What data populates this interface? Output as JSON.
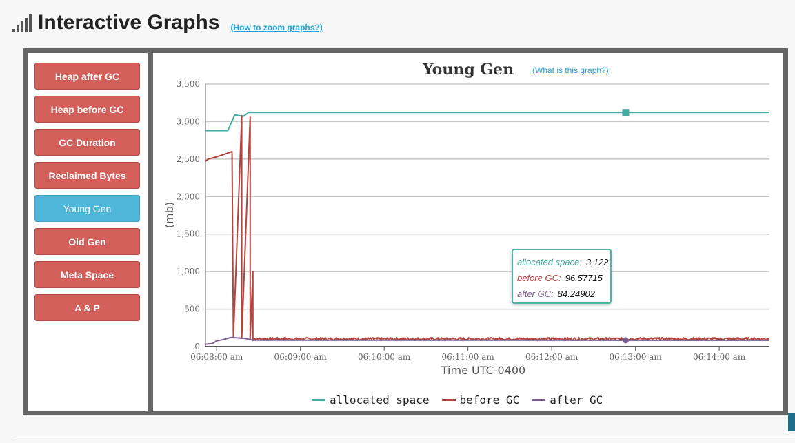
{
  "header": {
    "title": "Interactive Graphs",
    "zoom_link": "(How to zoom graphs?)"
  },
  "sidebar": {
    "items": [
      {
        "label": "Heap after GC",
        "active": false
      },
      {
        "label": "Heap before GC",
        "active": false
      },
      {
        "label": "GC Duration",
        "active": false
      },
      {
        "label": "Reclaimed Bytes",
        "active": false
      },
      {
        "label": "Young Gen",
        "active": true
      },
      {
        "label": "Old Gen",
        "active": false
      },
      {
        "label": "Meta Space",
        "active": false
      },
      {
        "label": "A & P",
        "active": false
      }
    ]
  },
  "colors": {
    "allocated": "#45aaa0",
    "before": "#b5433e",
    "after": "#7c5c8e",
    "active_button": "#4eb6d8",
    "button": "#d35f5a"
  },
  "tooltip": {
    "allocated_label": "allocated space:",
    "allocated_value": "3,122",
    "before_label": "before GC:",
    "before_value": "96.57715",
    "after_label": "after GC:",
    "after_value": "84.24902"
  },
  "chart_data": {
    "type": "line",
    "title": "Young Gen",
    "help_link": "(What is this graph?)",
    "xlabel": "Time UTC-0400",
    "ylabel": "(mb)",
    "ylim": [
      0,
      3500
    ],
    "yticks": [
      0,
      500,
      1000,
      1500,
      2000,
      2500,
      3000,
      3500
    ],
    "ytick_labels": [
      "0",
      "500",
      "1,000",
      "1,500",
      "2,000",
      "2,500",
      "3,000",
      "3,500"
    ],
    "x_range": [
      "06:07:52",
      "06:14:36"
    ],
    "xticks": [
      "06:08:00",
      "06:09:00",
      "06:10:00",
      "06:11:00",
      "06:12:00",
      "06:13:00",
      "06:14:00"
    ],
    "xtick_labels": [
      "06:08:00 am",
      "06:09:00 am",
      "06:10:00 am",
      "06:11:00 am",
      "06:12:00 am",
      "06:13:00 am",
      "06:14:00 am"
    ],
    "grid": true,
    "legend_position": "bottom-center",
    "series": [
      {
        "name": "allocated space",
        "color": "#45aaa0",
        "x": [
          "06:07:52",
          "06:08:08",
          "06:08:13",
          "06:08:19",
          "06:08:23",
          "06:14:36"
        ],
        "values": [
          2880,
          2880,
          3090,
          3070,
          3122,
          3122
        ]
      },
      {
        "name": "before GC",
        "color": "#b5433e",
        "x": [
          "06:07:52",
          "06:07:54",
          "06:07:58",
          "06:08:00",
          "06:08:05",
          "06:08:11",
          "06:08:12",
          "06:08:18",
          "06:08:18",
          "06:08:24",
          "06:08:24",
          "06:08:26",
          "06:08:26",
          "06:08:27",
          "06:14:36"
        ],
        "values": [
          2470,
          2500,
          2520,
          2530,
          2560,
          2600,
          120,
          3080,
          110,
          3060,
          100,
          1000,
          80,
          95,
          100
        ],
        "noise_from": "06:08:27"
      },
      {
        "name": "after GC",
        "color": "#7c5c8e",
        "x": [
          "06:07:52",
          "06:07:57",
          "06:08:00",
          "06:08:05",
          "06:08:10",
          "06:08:20",
          "06:08:26",
          "06:14:36"
        ],
        "values": [
          30,
          40,
          75,
          95,
          120,
          110,
          85,
          84
        ]
      }
    ],
    "hover_time": "06:12:53"
  }
}
